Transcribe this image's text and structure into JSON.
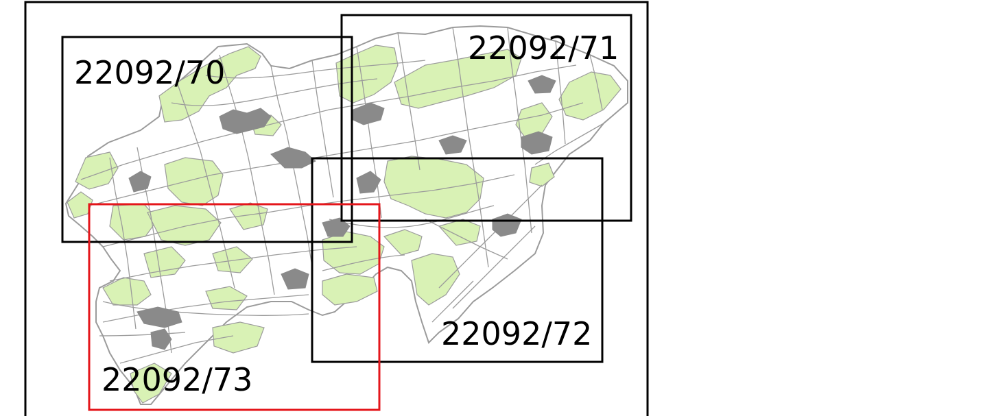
{
  "map": {
    "sheets": [
      {
        "id": "sheet-22092-70",
        "label": "22092/70",
        "selected": false
      },
      {
        "id": "sheet-22092-71",
        "label": "22092/71",
        "selected": false
      },
      {
        "id": "sheet-22092-72",
        "label": "22092/72",
        "selected": false
      },
      {
        "id": "sheet-22092-73",
        "label": "22092/73",
        "selected": true
      }
    ],
    "colors": {
      "frame": "#000000",
      "sheet_border": "#000000",
      "selected_sheet_border": "#e4161b",
      "parcel_line": "#9b9b9b",
      "forest_fill": "#d9f2b5",
      "settlement": "#8a8a8a"
    }
  }
}
